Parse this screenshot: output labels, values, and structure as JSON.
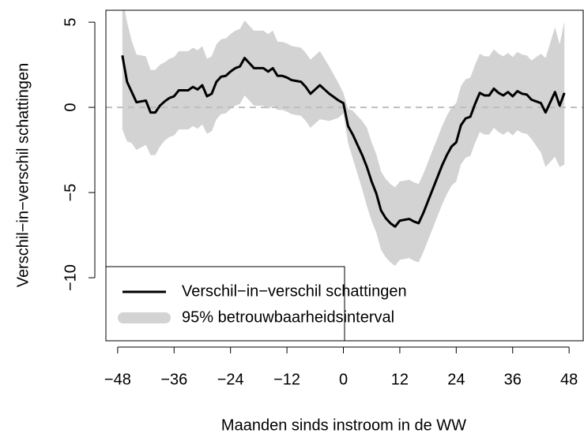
{
  "chart_data": {
    "type": "line",
    "x_label": "Maanden sinds instroom in de WW",
    "y_label": "Verschil−in−verschil schattingen",
    "x": [
      -47,
      -46,
      -45,
      -44,
      -43,
      -42,
      -41,
      -40,
      -39,
      -38,
      -37,
      -36,
      -35,
      -34,
      -33,
      -32,
      -31,
      -30,
      -29,
      -28,
      -27,
      -26,
      -25,
      -24,
      -23,
      -22,
      -21,
      -20,
      -19,
      -18,
      -17,
      -16,
      -15,
      -14,
      -13,
      -12,
      -11,
      -10,
      -9,
      -8,
      -7,
      -6,
      -5,
      -4,
      -3,
      -2,
      -1,
      0,
      1,
      2,
      3,
      4,
      5,
      6,
      7,
      8,
      9,
      10,
      11,
      12,
      13,
      14,
      15,
      16,
      17,
      18,
      19,
      20,
      21,
      22,
      23,
      24,
      25,
      26,
      27,
      28,
      29,
      30,
      31,
      32,
      33,
      34,
      35,
      36,
      37,
      38,
      39,
      40,
      41,
      42,
      43,
      44,
      45,
      46,
      47
    ],
    "series": [
      {
        "name": "Verschil−in−verschil schattingen",
        "color": "#000000",
        "values": [
          3.05,
          1.5,
          0.9,
          0.3,
          0.35,
          0.4,
          -0.3,
          -0.3,
          0.1,
          0.35,
          0.55,
          0.65,
          1.0,
          1.0,
          1.0,
          1.2,
          1.05,
          1.3,
          0.65,
          0.8,
          1.5,
          1.8,
          1.85,
          2.1,
          2.3,
          2.4,
          2.9,
          2.6,
          2.3,
          2.3,
          2.3,
          2.1,
          2.3,
          1.85,
          1.85,
          1.75,
          1.6,
          1.55,
          1.5,
          1.2,
          0.8,
          1.05,
          1.3,
          1.05,
          0.8,
          0.6,
          0.4,
          0.25,
          -1.1,
          -1.6,
          -2.2,
          -2.8,
          -3.5,
          -4.35,
          -5.05,
          -6.05,
          -6.5,
          -6.8,
          -7.0,
          -6.65,
          -6.6,
          -6.55,
          -6.7,
          -6.8,
          -6.2,
          -5.5,
          -4.8,
          -4.1,
          -3.4,
          -2.8,
          -2.3,
          -2.05,
          -1.05,
          -0.65,
          -0.55,
          0.2,
          0.85,
          0.7,
          0.7,
          1.1,
          0.85,
          0.7,
          0.9,
          0.65,
          0.95,
          0.8,
          0.75,
          0.45,
          0.35,
          0.25,
          -0.3,
          0.3,
          0.9,
          0.1,
          0.85
        ]
      }
    ],
    "band": {
      "name": "95% betrouwbaarheidsinterval",
      "color": "#d3d3d3",
      "upper": [
        6.5,
        5.0,
        3.9,
        3.1,
        3.05,
        3.0,
        2.2,
        2.2,
        2.5,
        2.65,
        2.85,
        2.95,
        3.3,
        3.3,
        3.3,
        3.5,
        3.35,
        3.6,
        2.85,
        3.0,
        3.7,
        4.0,
        4.05,
        4.3,
        4.5,
        4.6,
        5.1,
        4.8,
        4.5,
        4.5,
        4.5,
        4.3,
        4.5,
        3.85,
        3.85,
        3.75,
        3.6,
        3.55,
        3.5,
        3.2,
        2.8,
        3.05,
        3.3,
        2.85,
        2.4,
        1.9,
        1.4,
        0.85,
        -0.1,
        -0.2,
        -0.5,
        -0.8,
        -1.2,
        -2.05,
        -2.75,
        -3.75,
        -4.2,
        -4.5,
        -4.7,
        -4.35,
        -4.3,
        -4.25,
        -4.4,
        -4.5,
        -3.9,
        -3.2,
        -2.5,
        -1.8,
        -1.1,
        -0.5,
        0.0,
        0.25,
        1.25,
        1.65,
        1.75,
        2.5,
        3.15,
        3.0,
        3.0,
        3.4,
        3.15,
        3.0,
        3.2,
        2.95,
        3.25,
        3.1,
        3.05,
        2.75,
        2.95,
        3.15,
        2.9,
        3.8,
        4.7,
        3.7,
        5.05
      ],
      "lower": [
        -1.3,
        -2.0,
        -2.1,
        -2.5,
        -2.35,
        -2.2,
        -2.8,
        -2.8,
        -2.3,
        -1.95,
        -1.75,
        -1.65,
        -1.3,
        -1.3,
        -1.3,
        -1.1,
        -1.25,
        -1.0,
        -1.55,
        -1.4,
        -0.7,
        -0.4,
        -0.35,
        -0.1,
        0.1,
        0.2,
        0.7,
        0.4,
        0.1,
        0.1,
        0.1,
        -0.1,
        0.1,
        -0.15,
        -0.15,
        -0.25,
        -0.4,
        -0.45,
        -0.5,
        -0.8,
        -1.2,
        -0.95,
        -0.7,
        -0.75,
        -0.8,
        -0.7,
        -0.6,
        -0.35,
        -2.1,
        -3.0,
        -3.9,
        -4.8,
        -5.8,
        -6.65,
        -7.35,
        -8.35,
        -8.8,
        -9.1,
        -9.3,
        -8.95,
        -8.9,
        -8.85,
        -9.0,
        -9.1,
        -8.5,
        -7.8,
        -7.1,
        -6.4,
        -5.7,
        -5.1,
        -4.6,
        -4.35,
        -3.35,
        -2.95,
        -2.85,
        -2.1,
        -1.45,
        -1.6,
        -1.6,
        -1.2,
        -1.45,
        -1.6,
        -1.4,
        -1.65,
        -1.35,
        -1.5,
        -1.55,
        -1.85,
        -2.25,
        -2.65,
        -3.5,
        -3.2,
        -2.9,
        -3.5,
        -3.35
      ]
    },
    "reference_line": {
      "value": 0,
      "color": "#bebebe"
    },
    "xlim": [
      -50.5,
      51
    ],
    "ylim": [
      -13.7,
      5.7
    ],
    "xticks": [
      {
        "value": -48,
        "label": "−48"
      },
      {
        "value": -36,
        "label": "−36"
      },
      {
        "value": -24,
        "label": "−24"
      },
      {
        "value": -12,
        "label": "−12"
      },
      0,
      12,
      24,
      36,
      48
    ],
    "yticks": [
      {
        "value": -10,
        "label": "−10"
      },
      {
        "value": -5,
        "label": "−5"
      },
      0,
      5
    ],
    "legend": "bottomleft",
    "grid": false
  }
}
